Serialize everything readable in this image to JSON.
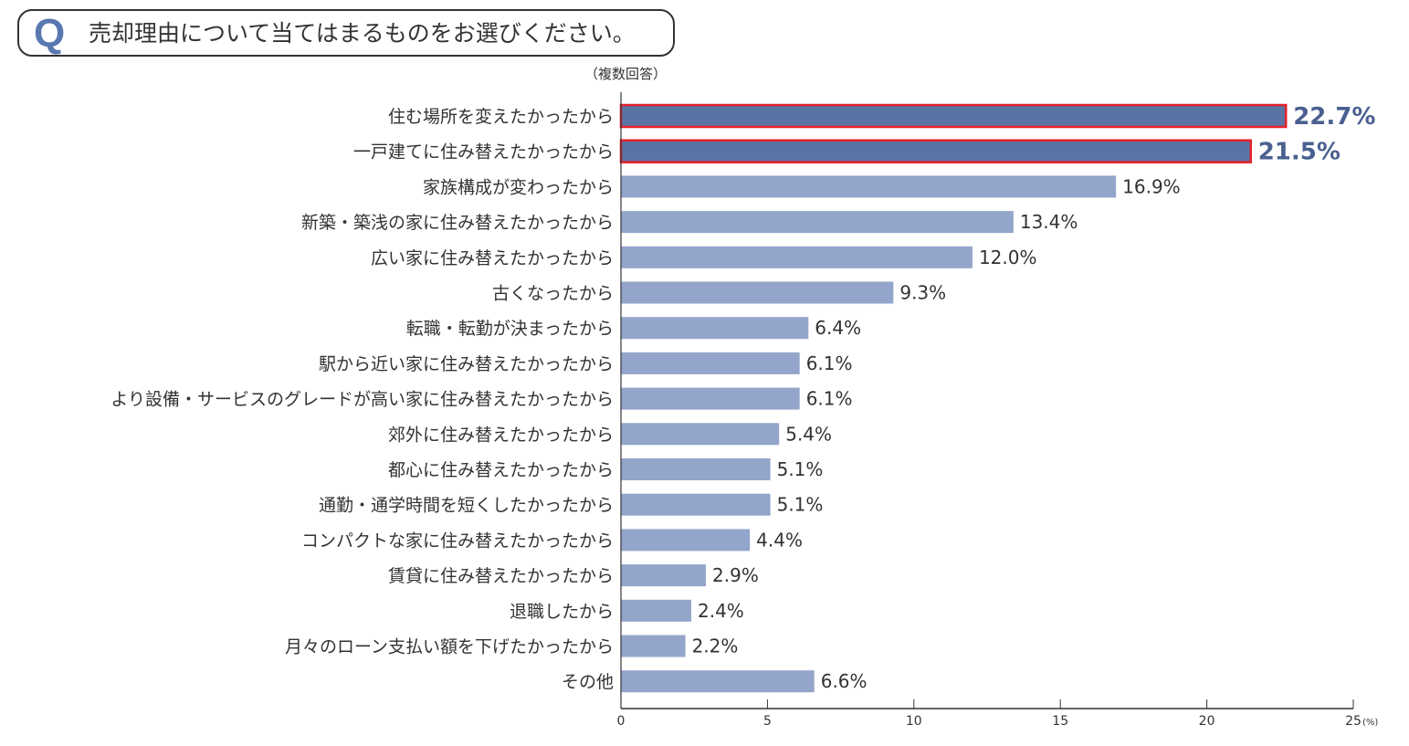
{
  "question": {
    "mark": "Q",
    "text": "売却理由について当てはまるものをお選びください。",
    "note": "（複数回答）"
  },
  "chart_data": {
    "type": "bar",
    "orientation": "horizontal",
    "categories": [
      "住む場所を変えたかったから",
      "一戸建てに住み替えたかったから",
      "家族構成が変わったから",
      "新築・築浅の家に住み替えたかったから",
      "広い家に住み替えたかったから",
      "古くなったから",
      "転職・転勤が決まったから",
      "駅から近い家に住み替えたかったから",
      "より設備・サービスのグレードが高い家に住み替えたかったから",
      "郊外に住み替えたかったから",
      "都心に住み替えたかったから",
      "通勤・通学時間を短くしたかったから",
      "コンパクトな家に住み替えたかったから",
      "賃貸に住み替えたかったから",
      "退職したから",
      "月々のローン支払い額を下げたかったから",
      "その他"
    ],
    "values": [
      22.7,
      21.5,
      16.9,
      13.4,
      12.0,
      9.3,
      6.4,
      6.1,
      6.1,
      5.4,
      5.1,
      5.1,
      4.4,
      2.9,
      2.4,
      2.2,
      6.6
    ],
    "value_labels": [
      "22.7%",
      "21.5%",
      "16.9%",
      "13.4%",
      "12.0%",
      "9.3%",
      "6.4%",
      "6.1%",
      "6.1%",
      "5.4%",
      "5.1%",
      "5.1%",
      "4.4%",
      "2.9%",
      "2.4%",
      "2.2%",
      "6.6%"
    ],
    "highlighted": [
      0,
      1
    ],
    "xlim": [
      0,
      25
    ],
    "xticks": [
      0,
      5,
      10,
      15,
      20,
      25
    ],
    "xtick_labels": [
      "0",
      "5",
      "10",
      "15",
      "20",
      "25"
    ],
    "xunit": "(%)",
    "grid": false,
    "colors": {
      "bar": "#94a5cb",
      "highlight_bar": "#5a73a5",
      "highlight_border": "#e8202a",
      "highlight_label": "#4a6090",
      "text": "#333333"
    }
  }
}
